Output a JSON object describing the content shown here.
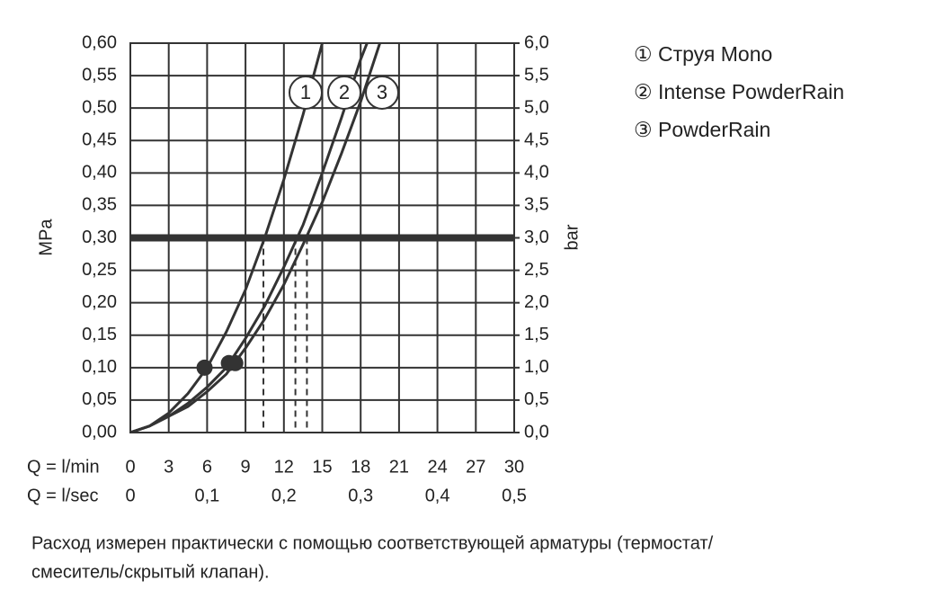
{
  "chart_data": {
    "type": "line",
    "ylabel": "MPa",
    "y2label": "bar",
    "xlabel": "Q = l/min",
    "x2label": "Q = l/sec",
    "xlim": [
      0,
      30
    ],
    "xticks": [
      0,
      3,
      6,
      9,
      12,
      15,
      18,
      21,
      24,
      27,
      30
    ],
    "x2lim": [
      0,
      0.5
    ],
    "x2ticks": [
      0,
      {
        "value": 0.1,
        "label": "0,1"
      },
      {
        "value": 0.2,
        "label": "0,2"
      },
      {
        "value": 0.3,
        "label": "0,3"
      },
      {
        "value": 0.4,
        "label": "0,4"
      },
      {
        "value": 0.5,
        "label": "0,5"
      }
    ],
    "ylim": [
      0,
      0.6
    ],
    "yticks": [
      {
        "value": 0,
        "label": "0,00"
      },
      {
        "value": 0.05,
        "label": "0,05"
      },
      {
        "value": 0.1,
        "label": "0,10"
      },
      {
        "value": 0.15,
        "label": "0,15"
      },
      {
        "value": 0.2,
        "label": "0,20"
      },
      {
        "value": 0.25,
        "label": "0,25"
      },
      {
        "value": 0.3,
        "label": "0,30"
      },
      {
        "value": 0.35,
        "label": "0,35"
      },
      {
        "value": 0.4,
        "label": "0,40"
      },
      {
        "value": 0.45,
        "label": "0,45"
      },
      {
        "value": 0.5,
        "label": "0,50"
      },
      {
        "value": 0.55,
        "label": "0,55"
      },
      {
        "value": 0.6,
        "label": "0,60"
      }
    ],
    "y2lim": [
      0,
      6
    ],
    "y2ticks": [
      {
        "value": 0,
        "label": "0,0"
      },
      {
        "value": 0.5,
        "label": "0,5"
      },
      {
        "value": 1,
        "label": "1,0"
      },
      {
        "value": 1.5,
        "label": "1,5"
      },
      {
        "value": 2,
        "label": "2,0"
      },
      {
        "value": 2.5,
        "label": "2,5"
      },
      {
        "value": 3,
        "label": "3,0"
      },
      {
        "value": 3.5,
        "label": "3,5"
      },
      {
        "value": 4,
        "label": "4,0"
      },
      {
        "value": 4.5,
        "label": "4,5"
      },
      {
        "value": 5,
        "label": "5,0"
      },
      {
        "value": 5.5,
        "label": "5,5"
      },
      {
        "value": 6,
        "label": "6,0"
      }
    ],
    "grid": true,
    "color": "#333333",
    "reference_y": 0.3,
    "reference_x": [
      10.4,
      12.9,
      13.8
    ],
    "series": [
      {
        "name": "① Струя Mono",
        "label": "1",
        "color": "#333333",
        "x": [
          0,
          1.5,
          3,
          4.5,
          6,
          7.5,
          9,
          10.5,
          12,
          13.5,
          15
        ],
        "values": [
          0,
          0.01,
          0.03,
          0.06,
          0.1,
          0.155,
          0.22,
          0.3,
          0.39,
          0.49,
          0.6
        ]
      },
      {
        "name": "② Intense PowderRain",
        "label": "2",
        "color": "#333333",
        "x": [
          0,
          1.5,
          3,
          4.5,
          6,
          7.5,
          9,
          10.5,
          12,
          13.5,
          15,
          16.5,
          18,
          18.5
        ],
        "values": [
          0,
          0.01,
          0.025,
          0.045,
          0.07,
          0.1,
          0.145,
          0.195,
          0.255,
          0.32,
          0.4,
          0.485,
          0.575,
          0.6
        ]
      },
      {
        "name": "③ PowderRain",
        "label": "3",
        "color": "#333333",
        "x": [
          0,
          1.5,
          3,
          4.5,
          6,
          7.5,
          9,
          10.5,
          12,
          13.5,
          15,
          16.5,
          18,
          19.5
        ],
        "values": [
          0,
          0.01,
          0.025,
          0.04,
          0.063,
          0.09,
          0.13,
          0.175,
          0.228,
          0.29,
          0.355,
          0.43,
          0.51,
          0.6
        ]
      }
    ],
    "markers": {
      "x": [
        5.8,
        7.7,
        8.2
      ],
      "values": [
        0.1,
        0.107,
        0.107
      ]
    },
    "footnote": [
      "Расход измерен практически с помощью соответствующей арматуры (термостат/",
      "смеситель/скрытый клапан)."
    ]
  }
}
